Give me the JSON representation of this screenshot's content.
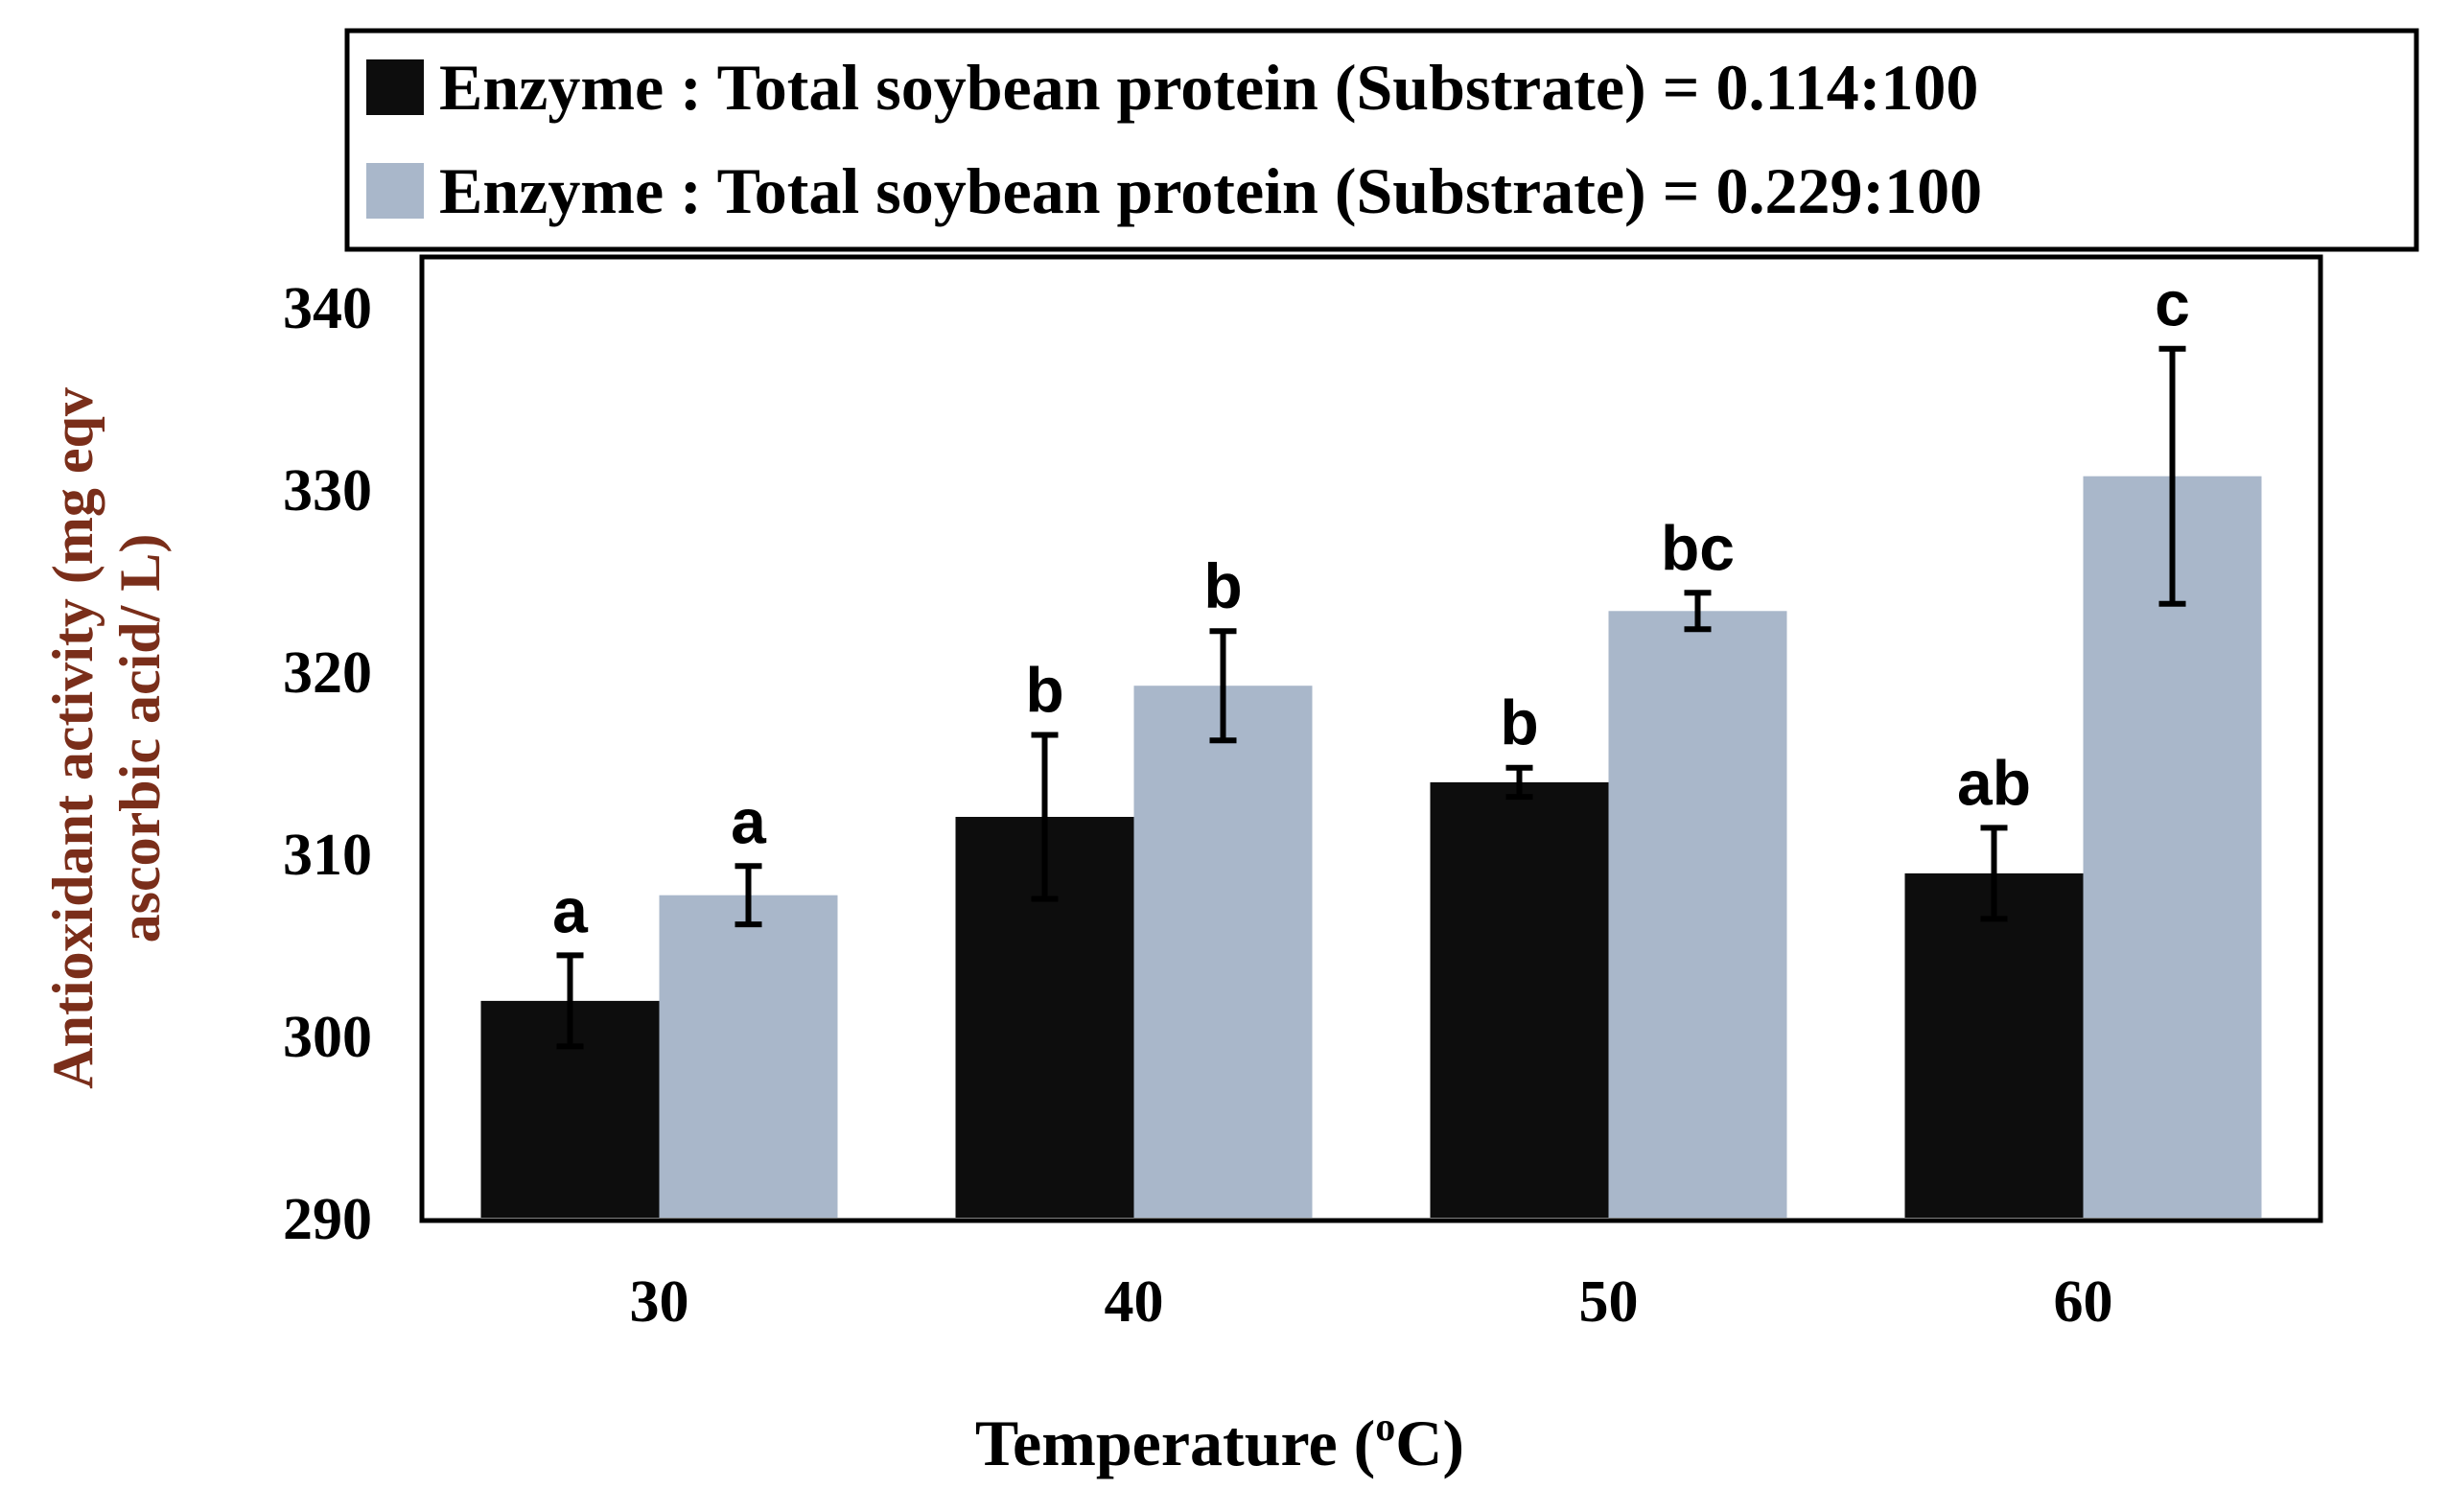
{
  "chart_data": {
    "type": "bar",
    "title": "",
    "xlabel": "Temperature (°C)",
    "xlabel_parts": {
      "prefix": "Temperature (",
      "superscript": "o",
      "suffix": "C)"
    },
    "ylabel_lines": [
      "Antioxidant activity (mg eqv",
      "ascorbic acid/ L)"
    ],
    "categories": [
      "30",
      "40",
      "50",
      "60"
    ],
    "ylim": [
      290,
      340
    ],
    "yticks": [
      "290",
      "300",
      "310",
      "320",
      "330",
      "340"
    ],
    "grid": false,
    "legend_position": "top",
    "series": [
      {
        "name": "Enzyme : Total soybean protein (Substrate) = 0.114:100",
        "color": "#0d0d0d",
        "values": [
          301.9,
          312.0,
          313.9,
          308.9
        ],
        "errors": [
          2.5,
          4.5,
          0.8,
          2.5
        ],
        "letters": [
          "a",
          "b",
          "b",
          "ab"
        ]
      },
      {
        "name": "Enzyme : Total soybean protein (Substrate) = 0.229:100",
        "color": "#a9b7ca",
        "values": [
          307.7,
          319.2,
          323.3,
          330.7
        ],
        "errors": [
          1.6,
          3.0,
          1.0,
          7.0
        ],
        "letters": [
          "a",
          "b",
          "bc",
          "c"
        ]
      }
    ],
    "colors": {
      "ylabel": "#7a2e1a",
      "axis": "#000000",
      "text": "#000000"
    }
  }
}
